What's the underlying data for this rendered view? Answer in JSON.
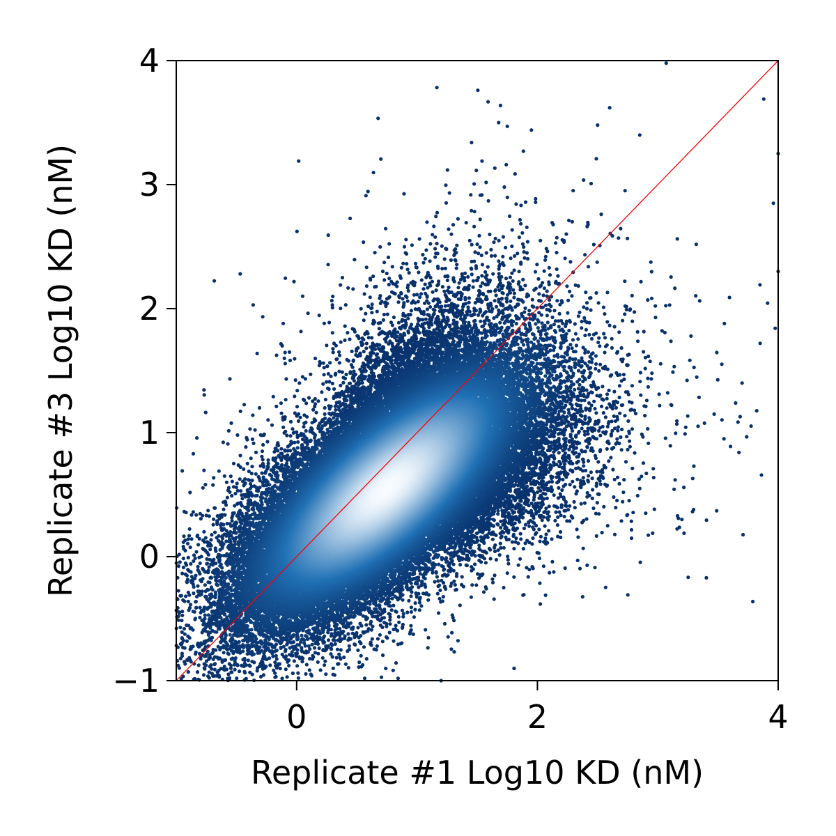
{
  "chart_data": {
    "type": "scatter",
    "title": "",
    "xlabel": "Replicate #1 Log10 KD (nM)",
    "ylabel": "Replicate #3 Log10 KD (nM)",
    "xlim": [
      -1,
      4
    ],
    "ylim": [
      -1,
      4
    ],
    "x_ticks": [
      0,
      2,
      4
    ],
    "x_tick_labels": [
      "0",
      "2",
      "4"
    ],
    "y_ticks": [
      -1,
      0,
      1,
      2,
      3,
      4
    ],
    "y_tick_labels": [
      "−1",
      "0",
      "1",
      "2",
      "3",
      "4"
    ],
    "grid": false,
    "legend": "none",
    "density_colored": true,
    "reference_line": {
      "from": [
        -1,
        -1
      ],
      "to": [
        4,
        4
      ],
      "color": "#ff0000"
    },
    "series": [
      {
        "distribution": {
          "center": [
            0.75,
            0.55
          ],
          "major_axis_angle_deg": 40,
          "major_sd": 0.72,
          "minor_sd": 0.28,
          "approx_points": 60000
        },
        "outlier_points": [
          [
            -0.9,
            -0.93
          ],
          [
            1.2,
            -1.0
          ],
          [
            3.07,
            3.98
          ],
          [
            3.88,
            3.69
          ],
          [
            2.6,
            3.62
          ],
          [
            1.75,
            3.47
          ],
          [
            2.5,
            3.48
          ],
          [
            1.95,
            3.44
          ],
          [
            4.0,
            3.25
          ],
          [
            3.96,
            2.85
          ],
          [
            4.0,
            2.3
          ],
          [
            -0.12,
            1.7
          ],
          [
            0.05,
            2.1
          ],
          [
            -0.28,
            0.75
          ],
          [
            -0.46,
            0.42
          ],
          [
            -0.52,
            0.06
          ],
          [
            -0.4,
            -0.33
          ],
          [
            -0.33,
            -0.46
          ],
          [
            0.0,
            -0.55
          ],
          [
            0.85,
            -0.53
          ],
          [
            1.07,
            -0.59
          ],
          [
            0.22,
            -0.45
          ],
          [
            3.55,
            0.95
          ],
          [
            3.2,
            0.3
          ],
          [
            2.9,
            0.35
          ],
          [
            2.1,
            -0.13
          ],
          [
            1.72,
            -0.25
          ],
          [
            3.85,
            1.72
          ],
          [
            3.3,
            0.73
          ],
          [
            2.85,
            3.4
          ],
          [
            0.05,
            1.45
          ],
          [
            -0.2,
            0.55
          ],
          [
            0.38,
            2.25
          ],
          [
            2.85,
            0.55
          ],
          [
            3.7,
            1.4
          ]
        ]
      }
    ]
  },
  "colors": {
    "sparse": "#08306b",
    "mid": "#2171b5",
    "dense": "#f7fbff",
    "axis": "#000000"
  }
}
